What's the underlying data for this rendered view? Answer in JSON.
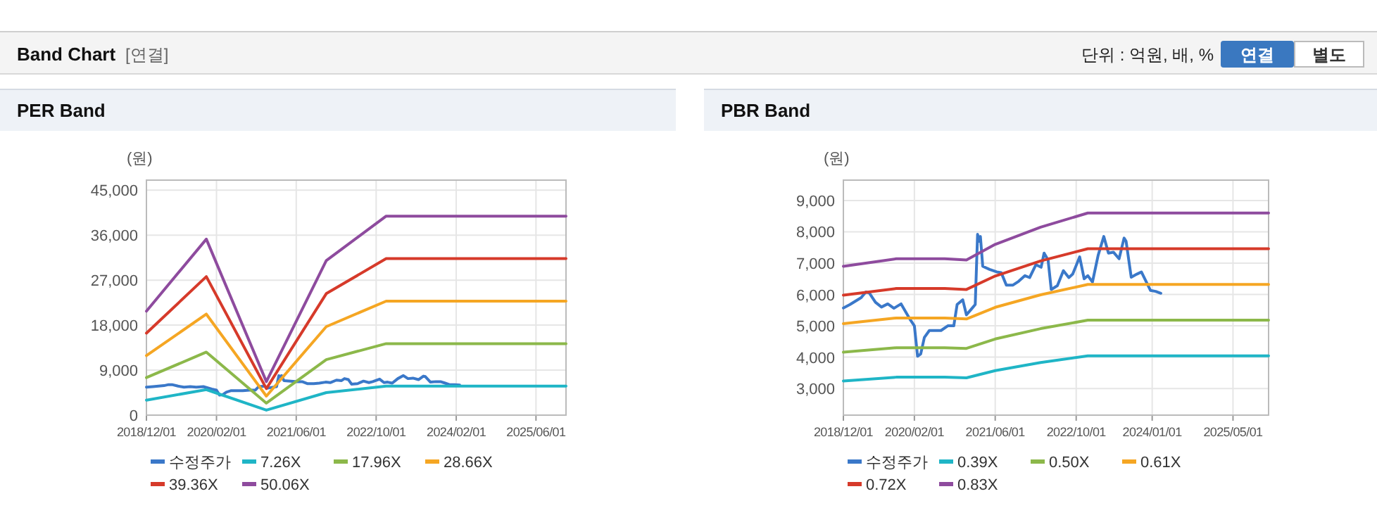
{
  "chart_data": [
    {
      "type": "line",
      "title": "PER Band",
      "ylabel": "(원)",
      "annotations": [
        "Band Chart",
        "[연결]",
        "단위 : 억원, 배, %",
        "연결",
        "별도"
      ],
      "grid": true,
      "legend": "bottom",
      "marker": "none",
      "line_style": "solid",
      "xlim": [
        "2018-12-01",
        "2025-12-01"
      ],
      "xticks": [
        {
          "value": "2018-12-01",
          "label": "2018/12/01"
        },
        {
          "value": "2020-02-01",
          "label": "2020/02/01"
        },
        {
          "value": "2021-06-01",
          "label": "2021/06/01"
        },
        {
          "value": "2022-10-01",
          "label": "2022/10/01"
        },
        {
          "value": "2024-02-01",
          "label": "2024/02/01"
        },
        {
          "value": "2025-06-01",
          "label": "2025/06/01"
        }
      ],
      "ylim": [
        0,
        47000
      ],
      "yticks": [
        {
          "value": 0,
          "label": "0"
        },
        {
          "value": 9000,
          "label": "9,000"
        },
        {
          "value": 18000,
          "label": "18,000"
        },
        {
          "value": 27000,
          "label": "27,000"
        },
        {
          "value": 36000,
          "label": "36,000"
        },
        {
          "value": 45000,
          "label": "45,000"
        }
      ],
      "series": [
        {
          "name": "수정주가",
          "color": "#3a78c9",
          "x": [
            "2018-12-01",
            "2019-01-10",
            "2019-03-18",
            "2019-04-15",
            "2019-05-06",
            "2019-06-12",
            "2019-07-18",
            "2019-08-25",
            "2019-10-01",
            "2019-11-13",
            "2020-01-03",
            "2020-02-01",
            "2020-02-20",
            "2020-03-10",
            "2020-04-01",
            "2020-05-01",
            "2020-07-10",
            "2020-08-20",
            "2020-09-25",
            "2020-10-15",
            "2020-11-18",
            "2020-12-10",
            "2021-01-13",
            "2021-02-01",
            "2021-02-15",
            "2021-02-25",
            "2021-03-04",
            "2021-03-18",
            "2021-04-28",
            "2021-06-10",
            "2021-07-07",
            "2021-08-07",
            "2021-09-16",
            "2021-10-20",
            "2021-11-27",
            "2021-12-25",
            "2022-02-01",
            "2022-03-04",
            "2022-03-22",
            "2022-04-15",
            "2022-05-04",
            "2022-06-10",
            "2022-07-16",
            "2022-08-18",
            "2022-09-10",
            "2022-10-22",
            "2022-11-18",
            "2022-12-10",
            "2023-01-07",
            "2023-02-10",
            "2023-03-16",
            "2023-04-13",
            "2023-05-13",
            "2023-06-16",
            "2023-07-16",
            "2023-07-28",
            "2023-08-28",
            "2023-10-01",
            "2023-10-28",
            "2023-11-25",
            "2023-12-22",
            "2024-01-22",
            "2024-02-22"
          ],
          "values": [
            5600,
            5700,
            5900,
            6100,
            6100,
            5800,
            5600,
            5700,
            5600,
            5700,
            5200,
            5000,
            4000,
            4100,
            4600,
            4900,
            4900,
            5000,
            5000,
            5700,
            5800,
            5400,
            5600,
            5700,
            7900,
            7700,
            7900,
            6900,
            6800,
            6700,
            6700,
            6300,
            6300,
            6400,
            6600,
            6500,
            7000,
            6900,
            7300,
            7100,
            6200,
            6300,
            6800,
            6500,
            6700,
            7200,
            6500,
            6600,
            6400,
            7300,
            7900,
            7300,
            7400,
            7100,
            7800,
            7700,
            6600,
            6700,
            6700,
            6400,
            6100,
            6100,
            6000
          ]
        },
        {
          "name": "7.26X",
          "color": "#1fb5c6",
          "x": [
            "2018-12-01",
            "2019-12-01",
            "2020-12-01",
            "2021-12-01",
            "2022-12-01",
            "2025-12-01"
          ],
          "values": [
            3000,
            5100,
            1000,
            4500,
            5800,
            5800
          ]
        },
        {
          "name": "17.96X",
          "color": "#8cb84a",
          "x": [
            "2018-12-01",
            "2019-12-01",
            "2020-12-01",
            "2021-12-01",
            "2022-12-01",
            "2025-12-01"
          ],
          "values": [
            7500,
            12600,
            2400,
            11100,
            14300,
            14300
          ]
        },
        {
          "name": "28.66X",
          "color": "#f5a623",
          "x": [
            "2018-12-01",
            "2019-12-01",
            "2020-12-01",
            "2021-12-01",
            "2022-12-01",
            "2025-12-01"
          ],
          "values": [
            11900,
            20200,
            3800,
            17700,
            22800,
            22800
          ]
        },
        {
          "name": "39.36X",
          "color": "#d63a2a",
          "x": [
            "2018-12-01",
            "2019-12-01",
            "2020-12-01",
            "2021-12-01",
            "2022-12-01",
            "2025-12-01"
          ],
          "values": [
            16400,
            27700,
            5300,
            24300,
            31300,
            31300
          ]
        },
        {
          "name": "50.06X",
          "color": "#8e4b9e",
          "x": [
            "2018-12-01",
            "2019-12-01",
            "2020-12-01",
            "2021-12-01",
            "2022-12-01",
            "2025-12-01"
          ],
          "values": [
            20800,
            35200,
            6700,
            30900,
            39800,
            39800
          ]
        }
      ]
    },
    {
      "type": "line",
      "title": "PBR Band",
      "ylabel": "(원)",
      "grid": true,
      "legend": "bottom",
      "marker": "none",
      "line_style": "solid",
      "xlim": [
        "2018-12-01",
        "2025-12-01"
      ],
      "xticks": [
        {
          "value": "2018-12-01",
          "label": "2018/12/01"
        },
        {
          "value": "2020-02-01",
          "label": "2020/02/01"
        },
        {
          "value": "2021-06-01",
          "label": "2021/06/01"
        },
        {
          "value": "2022-10-01",
          "label": "2022/10/01"
        },
        {
          "value": "2024-01-01",
          "label": "2024/01/01"
        },
        {
          "value": "2025-05-01",
          "label": "2025/05/01"
        }
      ],
      "ylim": [
        2150,
        9650
      ],
      "yticks": [
        {
          "value": 3000,
          "label": "3,000"
        },
        {
          "value": 4000,
          "label": "4,000"
        },
        {
          "value": 5000,
          "label": "5,000"
        },
        {
          "value": 6000,
          "label": "6,000"
        },
        {
          "value": 7000,
          "label": "7,000"
        },
        {
          "value": 8000,
          "label": "8,000"
        },
        {
          "value": 9000,
          "label": "9,000"
        }
      ],
      "series": [
        {
          "name": "수정주가",
          "color": "#3a78c9",
          "x": [
            "2018-12-01",
            "2019-01-10",
            "2019-03-18",
            "2019-04-15",
            "2019-05-06",
            "2019-06-12",
            "2019-07-18",
            "2019-08-25",
            "2019-10-01",
            "2019-11-13",
            "2020-01-03",
            "2020-02-01",
            "2020-02-20",
            "2020-03-10",
            "2020-04-01",
            "2020-05-01",
            "2020-07-10",
            "2020-08-20",
            "2020-09-25",
            "2020-10-15",
            "2020-11-18",
            "2020-12-10",
            "2021-01-13",
            "2021-02-01",
            "2021-02-15",
            "2021-02-25",
            "2021-03-04",
            "2021-03-18",
            "2021-04-28",
            "2021-06-10",
            "2021-07-07",
            "2021-08-07",
            "2021-09-16",
            "2021-10-20",
            "2021-11-27",
            "2021-12-25",
            "2022-02-01",
            "2022-03-04",
            "2022-03-22",
            "2022-04-15",
            "2022-05-04",
            "2022-06-10",
            "2022-07-16",
            "2022-08-18",
            "2022-09-10",
            "2022-10-22",
            "2022-11-18",
            "2022-12-10",
            "2023-01-07",
            "2023-02-10",
            "2023-03-16",
            "2023-04-13",
            "2023-05-13",
            "2023-06-16",
            "2023-07-16",
            "2023-07-28",
            "2023-08-28",
            "2023-10-01",
            "2023-10-28",
            "2023-11-25",
            "2023-12-22",
            "2024-01-22",
            "2024-02-22"
          ],
          "values": [
            5570,
            5680,
            5900,
            6080,
            6050,
            5750,
            5600,
            5700,
            5560,
            5700,
            5230,
            5000,
            4030,
            4100,
            4630,
            4850,
            4850,
            5000,
            5000,
            5680,
            5830,
            5350,
            5560,
            5680,
            7920,
            7700,
            7850,
            6900,
            6800,
            6720,
            6700,
            6300,
            6300,
            6420,
            6600,
            6540,
            6950,
            6870,
            7320,
            7100,
            6160,
            6280,
            6760,
            6540,
            6650,
            7200,
            6500,
            6600,
            6400,
            7250,
            7850,
            7320,
            7350,
            7140,
            7800,
            7700,
            6550,
            6650,
            6720,
            6420,
            6130,
            6100,
            6040
          ]
        },
        {
          "name": "0.39X",
          "color": "#1fb5c6",
          "x": [
            "2018-12-01",
            "2019-10-15",
            "2020-08-01",
            "2020-12-10",
            "2021-06-01",
            "2022-03-01",
            "2022-12-10",
            "2025-12-01"
          ],
          "values": [
            3240,
            3360,
            3360,
            3340,
            3570,
            3830,
            4040,
            4040
          ]
        },
        {
          "name": "0.50X",
          "color": "#8cb84a",
          "x": [
            "2018-12-01",
            "2019-10-15",
            "2020-08-01",
            "2020-12-10",
            "2021-06-01",
            "2022-03-01",
            "2022-12-10",
            "2025-12-01"
          ],
          "values": [
            4160,
            4300,
            4300,
            4280,
            4580,
            4910,
            5180,
            5180
          ]
        },
        {
          "name": "0.61X",
          "color": "#f5a623",
          "x": [
            "2018-12-01",
            "2019-10-15",
            "2020-08-01",
            "2020-12-10",
            "2021-06-01",
            "2022-03-01",
            "2022-12-10",
            "2025-12-01"
          ],
          "values": [
            5070,
            5250,
            5250,
            5220,
            5590,
            5990,
            6320,
            6320
          ]
        },
        {
          "name": "0.72X",
          "color": "#d63a2a",
          "x": [
            "2018-12-01",
            "2019-10-15",
            "2020-08-01",
            "2020-12-10",
            "2021-06-01",
            "2022-03-01",
            "2022-12-10",
            "2025-12-01"
          ],
          "values": [
            5980,
            6190,
            6190,
            6160,
            6590,
            7070,
            7460,
            7460
          ]
        },
        {
          "name": "0.83X",
          "color": "#8e4b9e",
          "x": [
            "2018-12-01",
            "2019-10-15",
            "2020-08-01",
            "2020-12-10",
            "2021-06-01",
            "2022-03-01",
            "2022-12-10",
            "2025-12-01"
          ],
          "values": [
            6900,
            7140,
            7140,
            7100,
            7600,
            8150,
            8600,
            8600
          ]
        }
      ]
    }
  ]
}
